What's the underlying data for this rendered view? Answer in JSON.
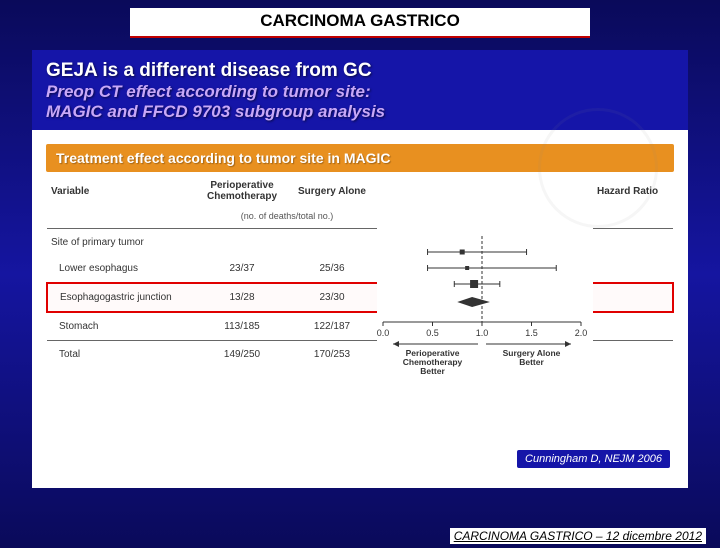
{
  "header": {
    "title": "CARCINOMA GASTRICO"
  },
  "blue_header": {
    "line1": "GEJA is a different disease from GC",
    "line2": "Preop CT effect according to tumor site:",
    "line3": "MAGIC and FFCD 9703 subgroup analysis"
  },
  "orange_bar": "Treatment effect according to tumor site in MAGIC",
  "table": {
    "col_variable": "Variable",
    "col_pc": "Perioperative Chemotherapy",
    "col_sa": "Surgery Alone",
    "col_hr": "Hazard Ratio",
    "sub_header": "(no. of deaths/total no.)",
    "section": "Site of primary tumor",
    "rows": [
      {
        "label": "Lower esophagus",
        "pc": "23/37",
        "sa": "25/36",
        "est": 0.8,
        "lo": 0.45,
        "hi": 1.45,
        "box": 5,
        "highlight": false
      },
      {
        "label": "Esophagogastric junction",
        "pc": "13/28",
        "sa": "23/30",
        "est": 0.85,
        "lo": 0.45,
        "hi": 1.75,
        "box": 4,
        "highlight": true
      },
      {
        "label": "Stomach",
        "pc": "113/185",
        "sa": "122/187",
        "est": 0.92,
        "lo": 0.72,
        "hi": 1.18,
        "box": 8,
        "highlight": false
      }
    ],
    "total": {
      "label": "Total",
      "pc": "149/250",
      "sa": "170/253",
      "est": 0.9,
      "lo": 0.75,
      "hi": 1.08
    }
  },
  "forest": {
    "xmin": 0.0,
    "xmax": 2.0,
    "ticks": [
      0.0,
      0.5,
      1.0,
      1.5,
      2.0
    ],
    "reference": 1.0,
    "left_label_1": "Perioperative",
    "left_label_2": "Chemotherapy",
    "left_label_3": "Better",
    "right_label_1": "Surgery Alone",
    "right_label_2": "Better",
    "marker_color": "#333333",
    "line_color": "#333333",
    "ref_line_color": "#333333",
    "diamond_color": "#333333"
  },
  "reference": "Cunningham D, NEJM 2006",
  "footer": "CARCINOMA GASTRICO – 12 dicembre 2012"
}
